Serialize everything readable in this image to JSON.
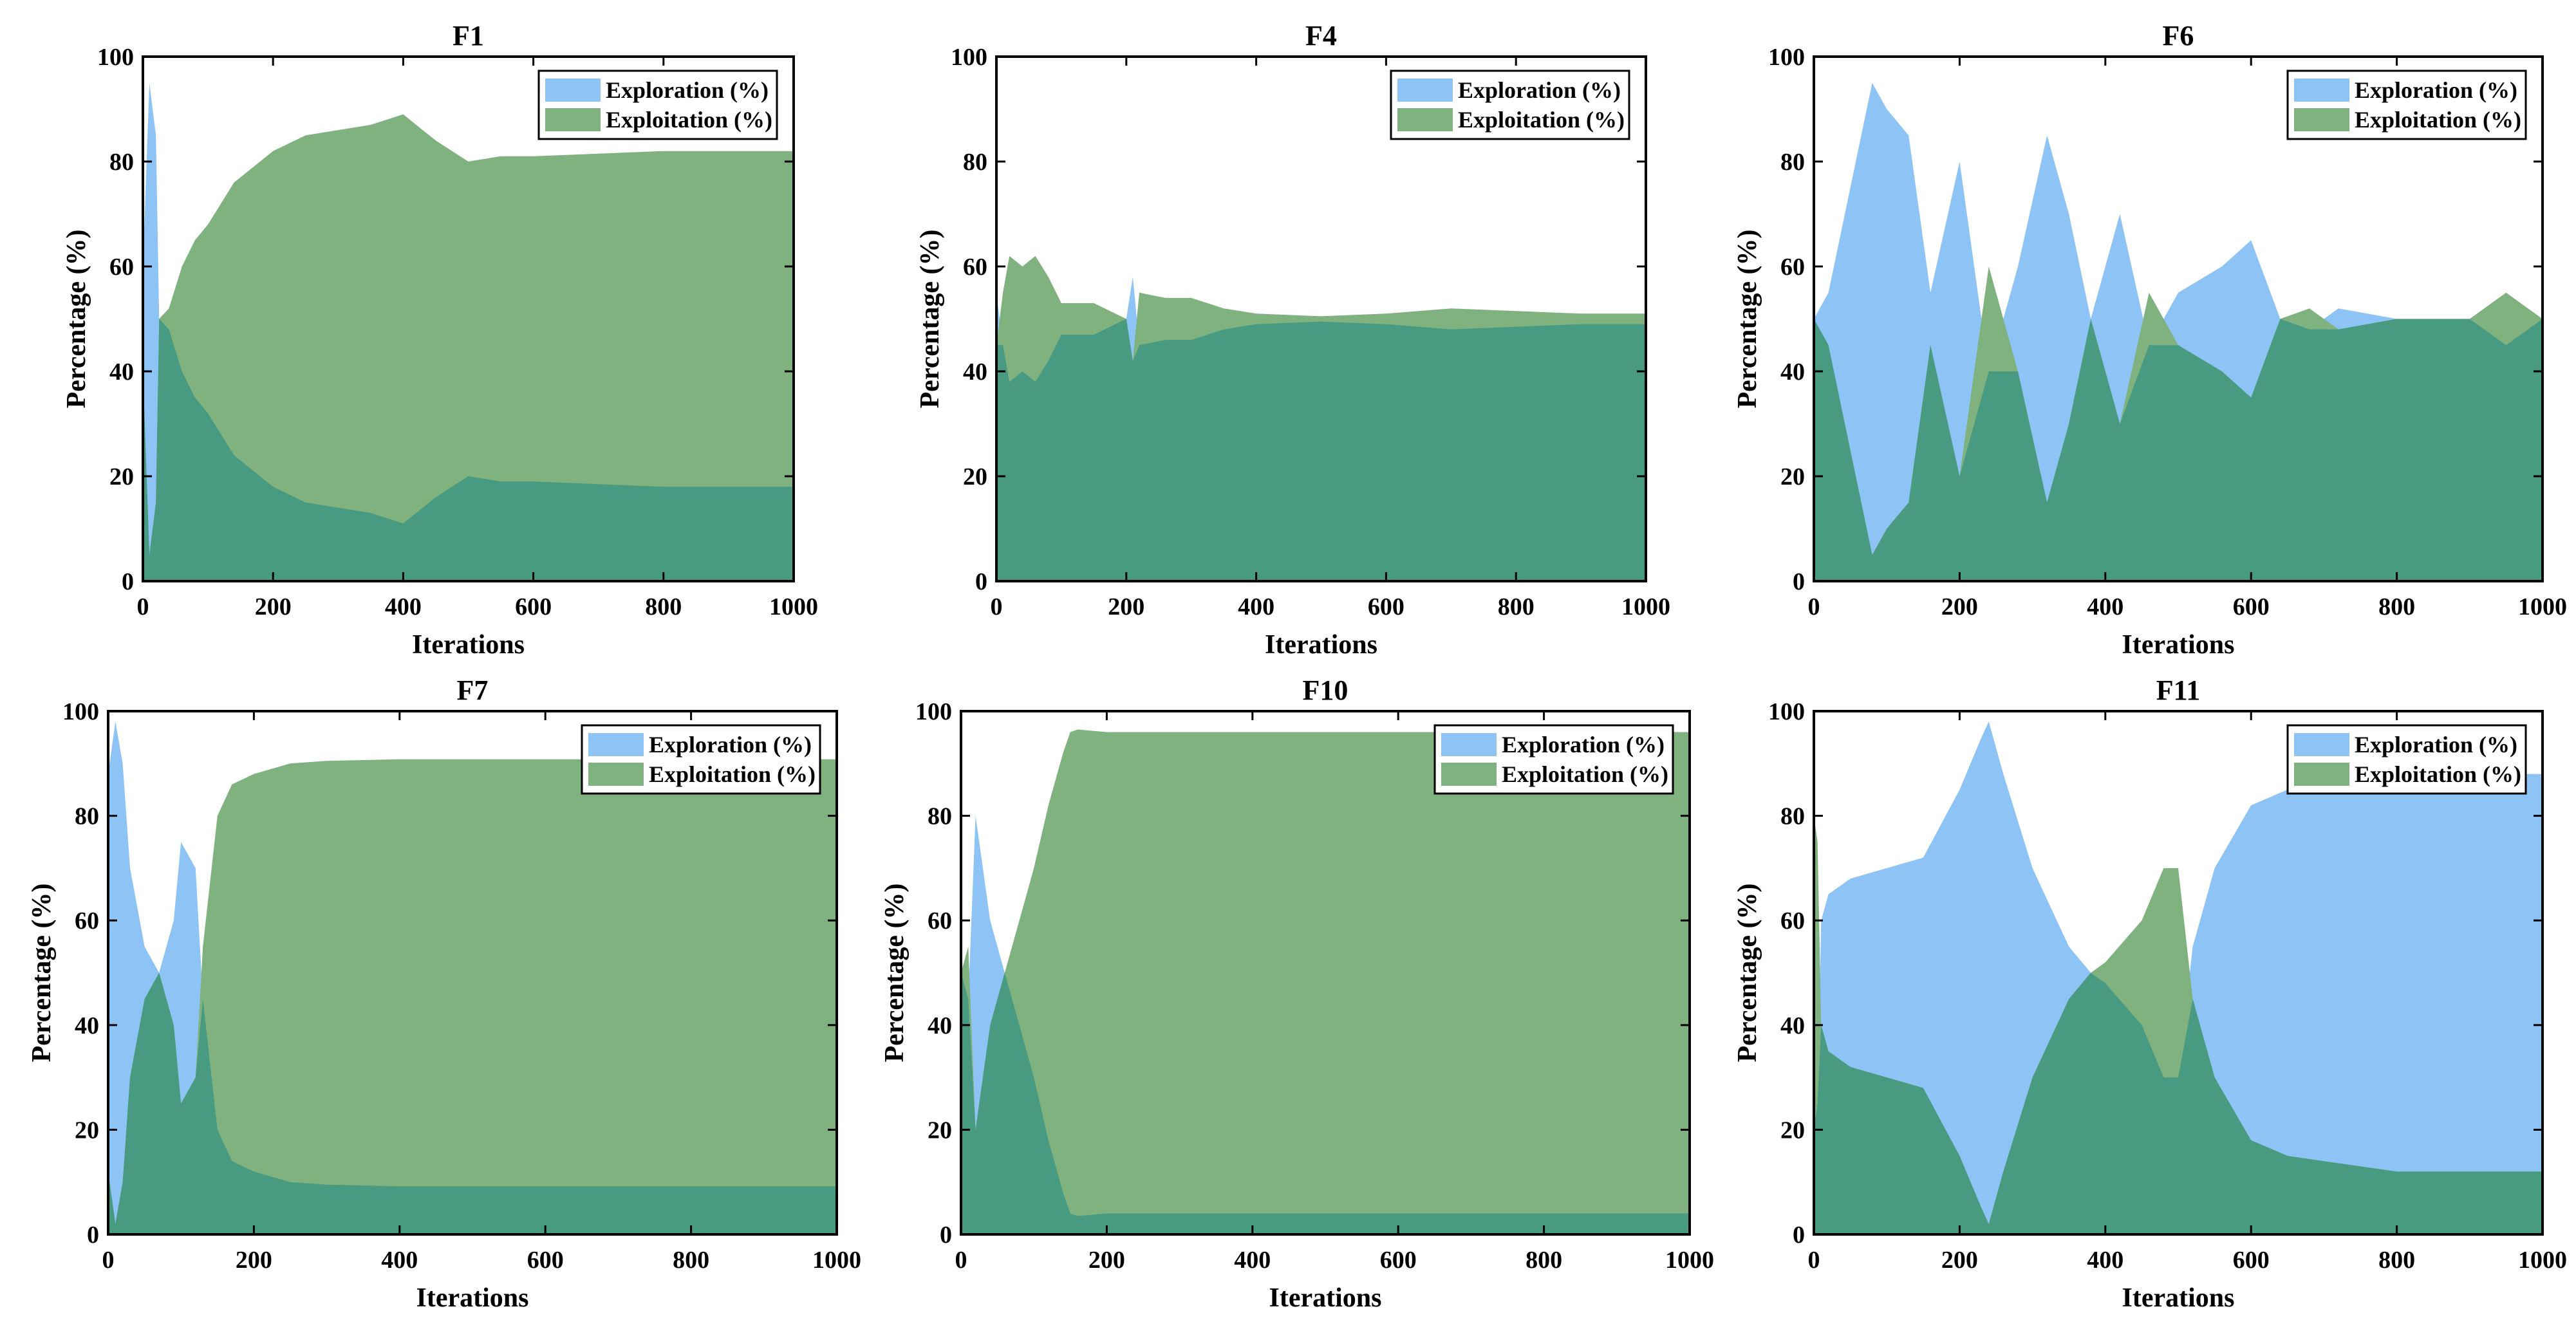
{
  "colors": {
    "exploration": "#8EC4F5",
    "exploitation": "#80B280",
    "overlap": "#489B80",
    "axis": "#000000"
  },
  "chart_data": [
    {
      "type": "area",
      "title": "F1",
      "xlabel": "Iterations",
      "ylabel": "Percentage (%)",
      "xlim": [
        0,
        1000
      ],
      "ylim": [
        0,
        100
      ],
      "xticks": [
        "0",
        "200",
        "400",
        "600",
        "800",
        "1000"
      ],
      "yticks": [
        "0",
        "20",
        "40",
        "60",
        "80",
        "100"
      ],
      "legend": {
        "position": "top-right",
        "entries": [
          "Exploration (%)",
          "Exploitation (%)"
        ]
      },
      "x": [
        0,
        10,
        20,
        25,
        40,
        60,
        80,
        100,
        120,
        140,
        160,
        200,
        250,
        300,
        350,
        400,
        420,
        450,
        500,
        550,
        600,
        700,
        800,
        900,
        1000
      ],
      "series": [
        {
          "name": "Exploration (%)",
          "values": [
            60,
            95,
            85,
            50,
            48,
            40,
            35,
            32,
            28,
            24,
            22,
            18,
            15,
            14,
            13,
            11,
            13,
            16,
            20,
            19,
            19,
            18.5,
            18,
            18,
            18
          ]
        },
        {
          "name": "Exploitation (%)",
          "values": [
            40,
            5,
            15,
            50,
            52,
            60,
            65,
            68,
            72,
            76,
            78,
            82,
            85,
            86,
            87,
            89,
            87,
            84,
            80,
            81,
            81,
            81.5,
            82,
            82,
            82
          ]
        }
      ]
    },
    {
      "type": "area",
      "title": "F4",
      "xlabel": "Iterations",
      "ylabel": "Percentage (%)",
      "xlim": [
        0,
        1000
      ],
      "ylim": [
        0,
        100
      ],
      "xticks": [
        "0",
        "200",
        "400",
        "600",
        "800",
        "1000"
      ],
      "yticks": [
        "0",
        "20",
        "40",
        "60",
        "80",
        "100"
      ],
      "legend": {
        "position": "top-right",
        "entries": [
          "Exploration (%)",
          "Exploitation (%)"
        ]
      },
      "x": [
        0,
        10,
        20,
        40,
        60,
        80,
        100,
        150,
        200,
        210,
        220,
        260,
        300,
        350,
        400,
        500,
        600,
        700,
        800,
        900,
        1000
      ],
      "series": [
        {
          "name": "Exploration (%)",
          "values": [
            55,
            45,
            38,
            40,
            38,
            42,
            47,
            47,
            50,
            58,
            45,
            46,
            46,
            48,
            49,
            49.5,
            49,
            48,
            48.5,
            49,
            49
          ]
        },
        {
          "name": "Exploitation (%)",
          "values": [
            45,
            55,
            62,
            60,
            62,
            58,
            53,
            53,
            50,
            42,
            55,
            54,
            54,
            52,
            51,
            50.5,
            51,
            52,
            51.5,
            51,
            51
          ]
        }
      ]
    },
    {
      "type": "area",
      "title": "F6",
      "xlabel": "Iterations",
      "ylabel": "Percentage (%)",
      "xlim": [
        0,
        1000
      ],
      "ylim": [
        0,
        100
      ],
      "xticks": [
        "0",
        "200",
        "400",
        "600",
        "800",
        "1000"
      ],
      "yticks": [
        "0",
        "20",
        "40",
        "60",
        "80",
        "100"
      ],
      "legend": {
        "position": "top-right",
        "entries": [
          "Exploration (%)",
          "Exploitation (%)"
        ]
      },
      "x": [
        0,
        20,
        50,
        80,
        100,
        130,
        160,
        200,
        240,
        280,
        320,
        350,
        380,
        420,
        460,
        500,
        560,
        600,
        640,
        680,
        720,
        800,
        900,
        950,
        1000
      ],
      "series": [
        {
          "name": "Exploration (%)",
          "values": [
            50,
            55,
            75,
            95,
            90,
            85,
            55,
            80,
            40,
            60,
            85,
            70,
            50,
            70,
            45,
            55,
            60,
            65,
            50,
            48,
            52,
            50,
            50,
            45,
            50
          ]
        },
        {
          "name": "Exploitation (%)",
          "values": [
            50,
            45,
            25,
            5,
            10,
            15,
            45,
            20,
            60,
            40,
            15,
            30,
            50,
            30,
            55,
            45,
            40,
            35,
            50,
            52,
            48,
            50,
            50,
            55,
            50
          ]
        }
      ]
    },
    {
      "type": "area",
      "title": "F7",
      "xlabel": "Iterations",
      "ylabel": "Percentage (%)",
      "xlim": [
        0,
        1000
      ],
      "ylim": [
        0,
        100
      ],
      "xticks": [
        "0",
        "200",
        "400",
        "600",
        "800",
        "1000"
      ],
      "yticks": [
        "0",
        "20",
        "40",
        "60",
        "80",
        "100"
      ],
      "legend": {
        "position": "top-right",
        "entries": [
          "Exploration (%)",
          "Exploitation (%)"
        ]
      },
      "x": [
        0,
        10,
        20,
        30,
        50,
        70,
        90,
        100,
        120,
        130,
        150,
        170,
        200,
        250,
        300,
        400,
        500,
        600,
        700,
        800,
        900,
        1000
      ],
      "series": [
        {
          "name": "Exploration (%)",
          "values": [
            88,
            98,
            90,
            70,
            55,
            50,
            60,
            75,
            70,
            45,
            20,
            14,
            12,
            10,
            9.5,
            9.2,
            9.2,
            9.2,
            9.2,
            9.2,
            9.2,
            9.2
          ]
        },
        {
          "name": "Exploitation (%)",
          "values": [
            12,
            2,
            10,
            30,
            45,
            50,
            40,
            25,
            30,
            55,
            80,
            86,
            88,
            90,
            90.5,
            90.8,
            90.8,
            90.8,
            90.8,
            90.8,
            90.8,
            90.8
          ]
        }
      ]
    },
    {
      "type": "area",
      "title": "F10",
      "xlabel": "Iterations",
      "ylabel": "Percentage (%)",
      "xlim": [
        0,
        1000
      ],
      "ylim": [
        0,
        100
      ],
      "xticks": [
        "0",
        "200",
        "400",
        "600",
        "800",
        "1000"
      ],
      "yticks": [
        "0",
        "20",
        "40",
        "60",
        "80",
        "100"
      ],
      "legend": {
        "position": "top-right",
        "entries": [
          "Exploration (%)",
          "Exploitation (%)"
        ]
      },
      "x": [
        0,
        10,
        20,
        40,
        60,
        80,
        100,
        120,
        140,
        150,
        160,
        200,
        300,
        400,
        500,
        600,
        700,
        800,
        900,
        1000
      ],
      "series": [
        {
          "name": "Exploration (%)",
          "values": [
            50,
            45,
            80,
            60,
            50,
            40,
            30,
            18,
            8,
            4,
            3.5,
            4,
            4,
            4,
            4,
            4,
            4,
            4,
            4,
            4
          ]
        },
        {
          "name": "Exploitation (%)",
          "values": [
            50,
            55,
            20,
            40,
            50,
            60,
            70,
            82,
            92,
            96,
            96.5,
            96,
            96,
            96,
            96,
            96,
            96,
            96,
            96,
            96
          ]
        }
      ]
    },
    {
      "type": "area",
      "title": "F11",
      "xlabel": "Iterations",
      "ylabel": "Percentage (%)",
      "xlim": [
        0,
        1000
      ],
      "ylim": [
        0,
        100
      ],
      "xticks": [
        "0",
        "200",
        "400",
        "600",
        "800",
        "1000"
      ],
      "yticks": [
        "0",
        "20",
        "40",
        "60",
        "80",
        "100"
      ],
      "legend": {
        "position": "top-right",
        "entries": [
          "Exploration (%)",
          "Exploitation (%)"
        ]
      },
      "x": [
        0,
        5,
        10,
        20,
        50,
        100,
        150,
        200,
        230,
        240,
        260,
        300,
        350,
        380,
        400,
        450,
        480,
        500,
        520,
        550,
        600,
        650,
        700,
        750,
        800,
        850,
        900,
        950,
        1000
      ],
      "series": [
        {
          "name": "Exploration (%)",
          "values": [
            20,
            25,
            60,
            65,
            68,
            70,
            72,
            85,
            95,
            98,
            88,
            70,
            55,
            50,
            48,
            40,
            30,
            30,
            55,
            70,
            82,
            85,
            86,
            87,
            88,
            88,
            88,
            88,
            88
          ]
        },
        {
          "name": "Exploitation (%)",
          "values": [
            80,
            75,
            40,
            35,
            32,
            30,
            28,
            15,
            5,
            2,
            12,
            30,
            45,
            50,
            52,
            60,
            70,
            70,
            45,
            30,
            18,
            15,
            14,
            13,
            12,
            12,
            12,
            12,
            12
          ]
        }
      ]
    }
  ]
}
